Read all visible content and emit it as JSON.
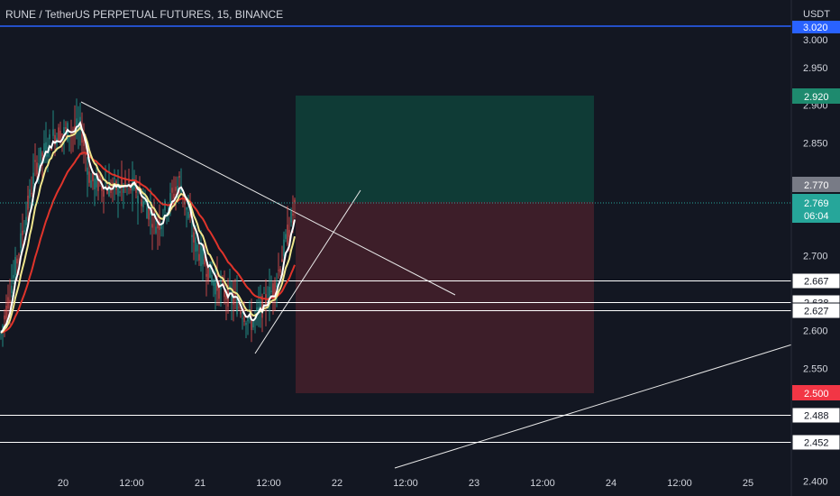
{
  "header": {
    "symbol": "RUNE / TetherUS PERPETUAL FUTURES",
    "interval": "15",
    "exchange": "BINANCE",
    "separator": ", "
  },
  "price_axis": {
    "currency": "USDT",
    "ticks": [
      "3.000",
      "2.950",
      "2.900",
      "2.850",
      "2.700",
      "2.600",
      "2.550",
      "2.400"
    ],
    "tick_values": [
      3.0,
      2.95,
      2.9,
      2.85,
      2.7,
      2.6,
      2.55,
      2.4
    ],
    "ylim": [
      2.38,
      3.04
    ],
    "label_upper_blue": "3.020",
    "label_target": "2.920",
    "label_gray": "2.770",
    "label_current": "2.769",
    "label_countdown": "06:04",
    "label_stop": "2.500",
    "hlines": [
      {
        "label": "2.667",
        "value": 2.667
      },
      {
        "label": "2.638",
        "value": 2.638
      },
      {
        "label": "2.627",
        "value": 2.627
      },
      {
        "label": "2.488",
        "value": 2.488
      },
      {
        "label": "2.452",
        "value": 2.452
      }
    ]
  },
  "time_axis": {
    "ticks": [
      "20",
      "12:00",
      "21",
      "12:00",
      "22",
      "12:00",
      "23",
      "12:00",
      "24",
      "12:00",
      "25"
    ]
  },
  "colors": {
    "background": "#131722",
    "text": "#d1d4dc",
    "blue_line": "#2962ff",
    "profit_zone": "#0f3d38",
    "loss_zone": "#3f1f2a",
    "target_badge": "#1e8a6e",
    "stop_badge": "#f23645",
    "current_badge": "#26a69a",
    "gray_badge": "#787b86",
    "candle_up": "#26a69a",
    "candle_down": "#ef5350",
    "ema_fast": "#ffffff",
    "ema_mid": "#f0e68c",
    "ema_slow": "#e0342b"
  },
  "chart_data": {
    "type": "candlestick",
    "title": "RUNE / TetherUS PERPETUAL FUTURES, 15, BINANCE",
    "ylim": [
      2.38,
      3.04
    ],
    "x_ticks": [
      "20",
      "12:00",
      "21",
      "12:00",
      "22",
      "12:00",
      "23",
      "12:00",
      "24",
      "12:00",
      "25"
    ],
    "y_ticks": [
      3.0,
      2.95,
      2.9,
      2.85,
      2.7,
      2.6,
      2.55,
      2.4
    ],
    "price_path": [
      {
        "t": "19 12:00",
        "price": 2.59
      },
      {
        "t": "19 15:00",
        "price": 2.7
      },
      {
        "t": "19 18:00",
        "price": 2.82
      },
      {
        "t": "19 21:00",
        "price": 2.86
      },
      {
        "t": "20 03:00",
        "price": 2.87
      },
      {
        "t": "20 06:00",
        "price": 2.8
      },
      {
        "t": "20 12:00",
        "price": 2.79
      },
      {
        "t": "20 15:00",
        "price": 2.79
      },
      {
        "t": "20 18:00",
        "price": 2.74
      },
      {
        "t": "21 00:00",
        "price": 2.8
      },
      {
        "t": "21 03:00",
        "price": 2.72
      },
      {
        "t": "21 06:00",
        "price": 2.66
      },
      {
        "t": "21 09:00",
        "price": 2.64
      },
      {
        "t": "21 12:00",
        "price": 2.61
      },
      {
        "t": "21 14:00",
        "price": 2.66
      },
      {
        "t": "21 15:30",
        "price": 2.77
      }
    ],
    "position": {
      "entry": 2.77,
      "target": 2.92,
      "stop": 2.5
    },
    "horizontal_levels": [
      2.667,
      2.638,
      2.627,
      2.488,
      2.452
    ]
  }
}
